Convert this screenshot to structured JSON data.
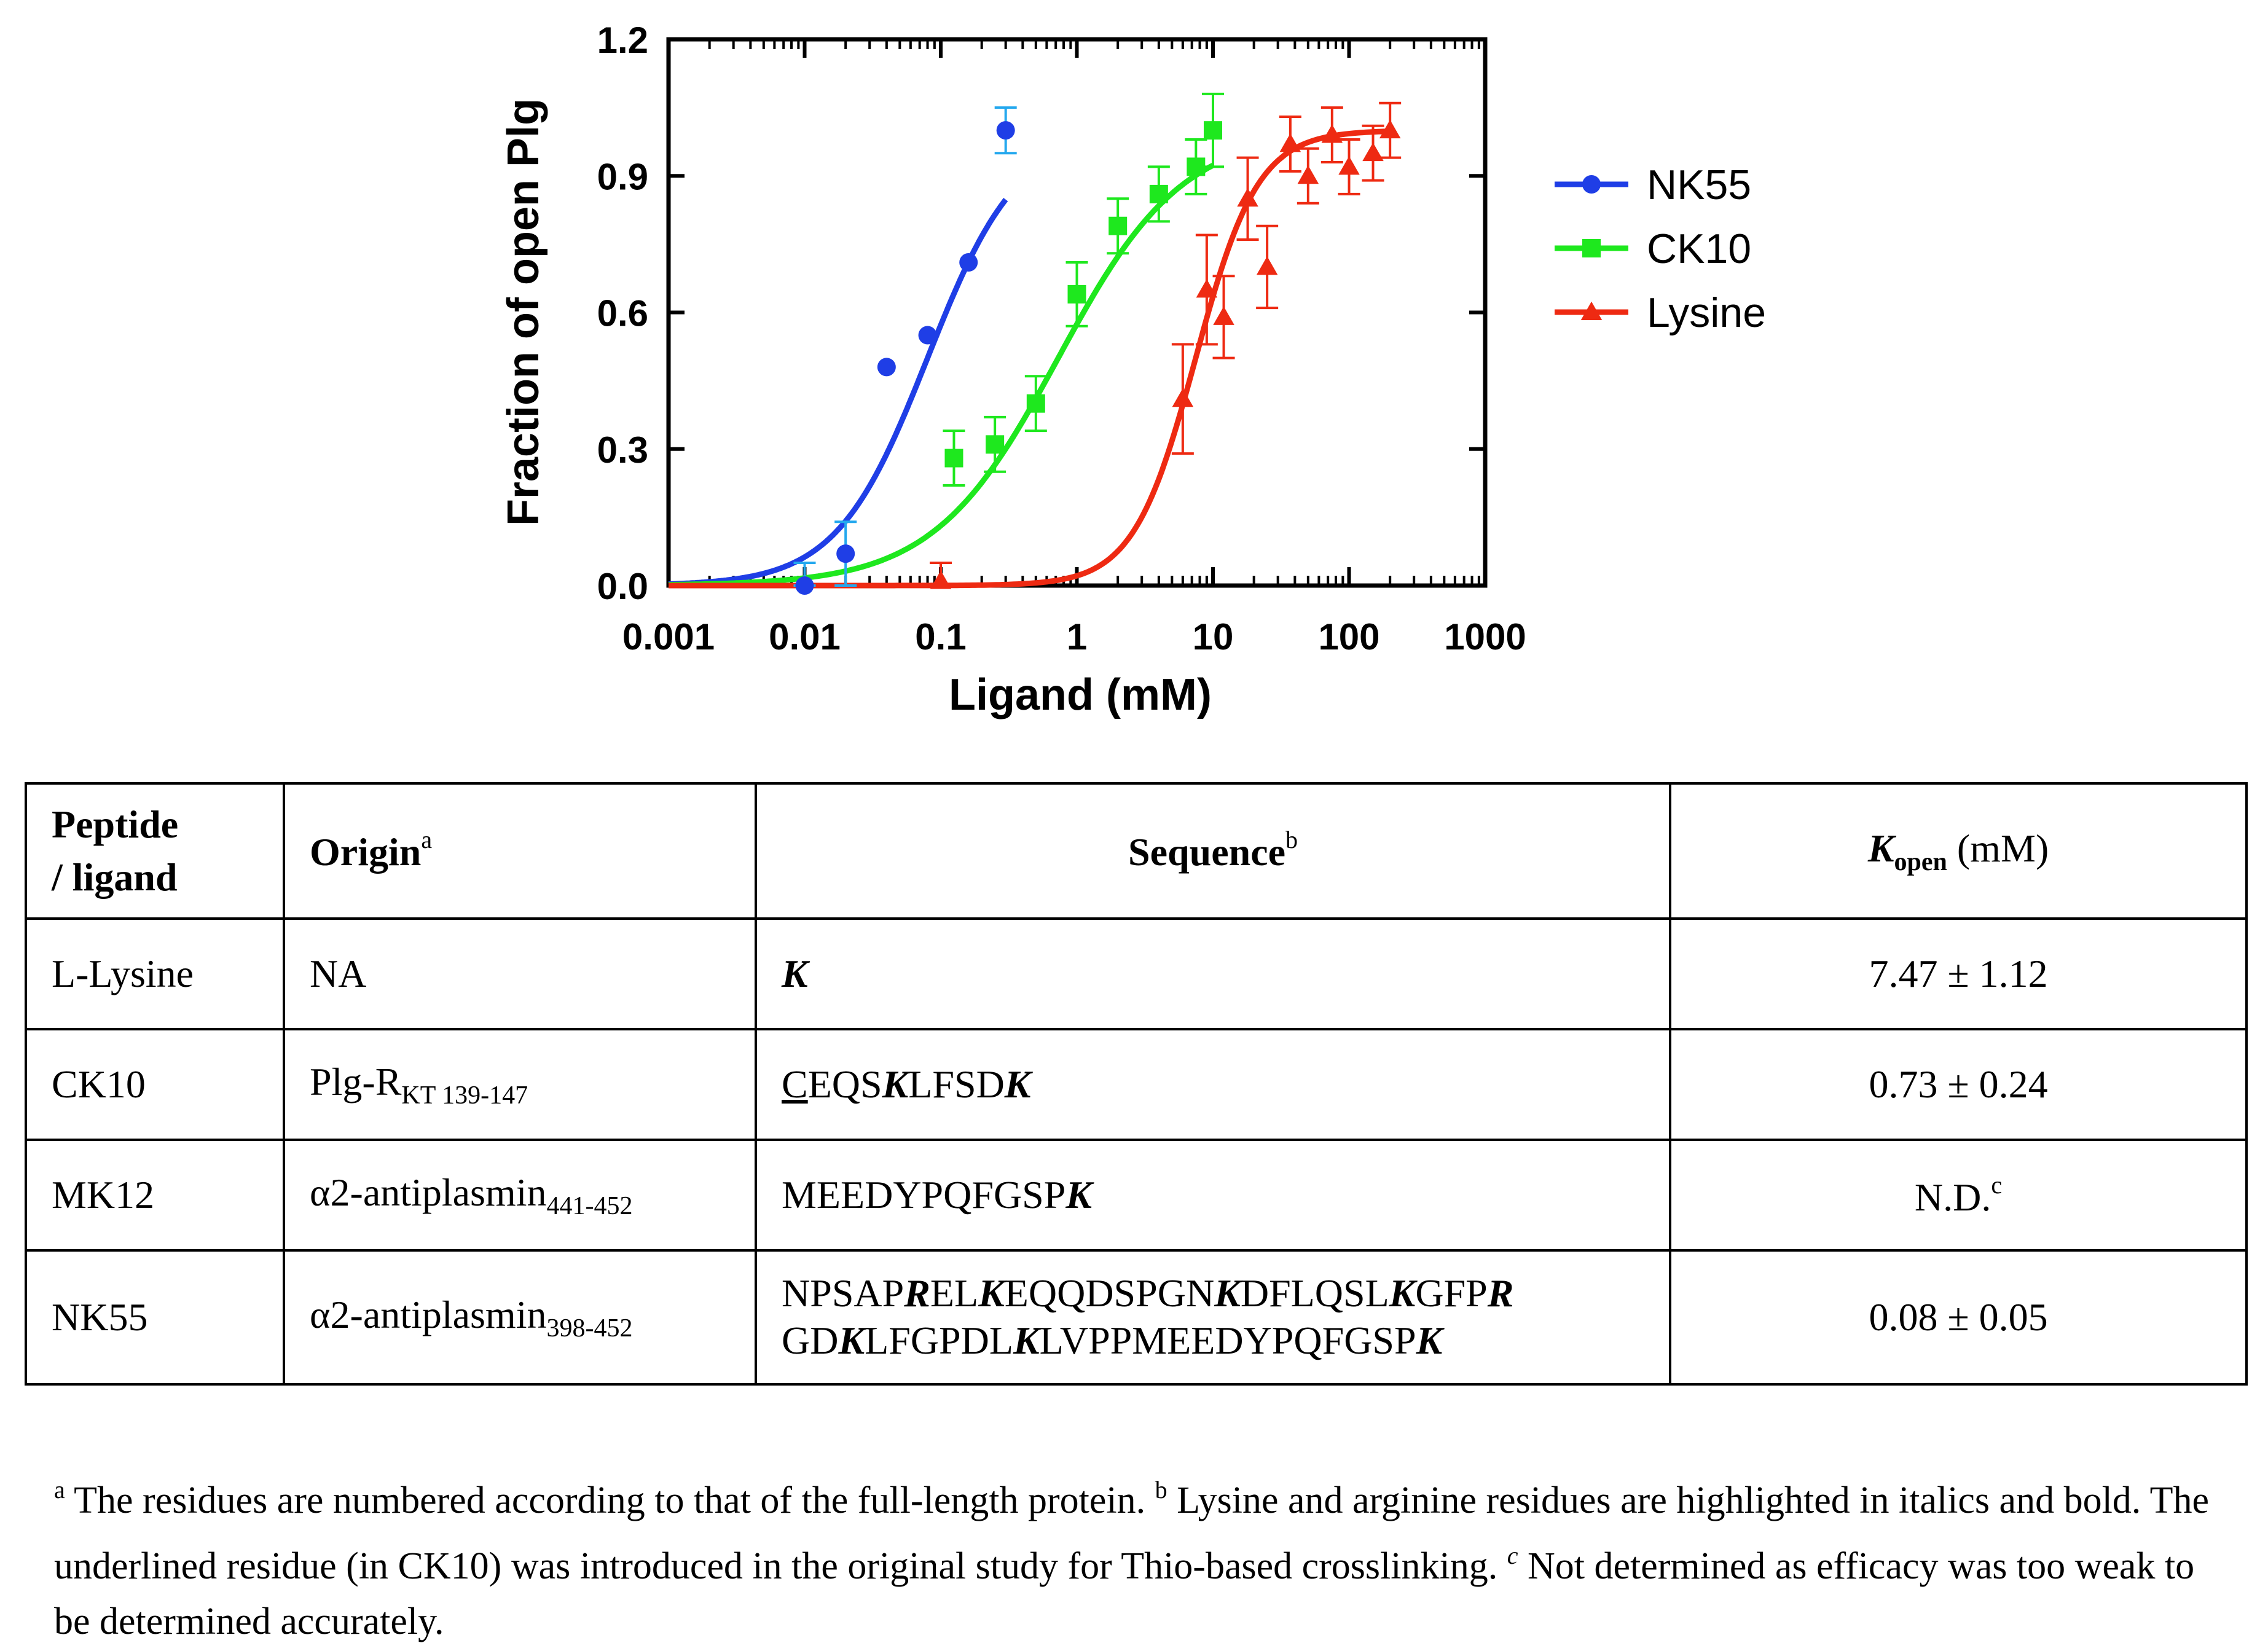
{
  "chart_data": {
    "type": "scatter",
    "xscale": "log",
    "xlabel": "Ligand (mM)",
    "ylabel": "Fraction of open Plg",
    "xlim": [
      0.001,
      1000
    ],
    "ylim": [
      0,
      1.2
    ],
    "xticks": [
      "0.001",
      "0.01",
      "0.1",
      "1",
      "10",
      "100",
      "1000"
    ],
    "yticks": [
      "0.0",
      "0.3",
      "0.6",
      "0.9",
      "1.2"
    ],
    "legend_position": "right",
    "series": [
      {
        "name": "NK55",
        "color": "#1f3ee6",
        "errColor": "#24a8ee",
        "marker": "circle",
        "fit": {
          "k": 0.08,
          "n": 1.3,
          "xmax": 0.3
        },
        "points": [
          {
            "x": 0.01,
            "y": 0.0,
            "err": 0.05
          },
          {
            "x": 0.02,
            "y": 0.07,
            "err": 0.07
          },
          {
            "x": 0.04,
            "y": 0.48,
            "err": 0
          },
          {
            "x": 0.08,
            "y": 0.55,
            "err": 0
          },
          {
            "x": 0.16,
            "y": 0.71,
            "err": 0
          },
          {
            "x": 0.3,
            "y": 1.0,
            "err": 0.05
          }
        ]
      },
      {
        "name": "CK10",
        "color": "#1ee81e",
        "errColor": "#1ee81e",
        "marker": "square",
        "fit": {
          "k": 0.73,
          "n": 0.95,
          "xmax": 10
        },
        "points": [
          {
            "x": 0.125,
            "y": 0.28,
            "err": 0.06
          },
          {
            "x": 0.25,
            "y": 0.31,
            "err": 0.06
          },
          {
            "x": 0.5,
            "y": 0.4,
            "err": 0.06
          },
          {
            "x": 1,
            "y": 0.64,
            "err": 0.07
          },
          {
            "x": 2,
            "y": 0.79,
            "err": 0.06
          },
          {
            "x": 4,
            "y": 0.86,
            "err": 0.06
          },
          {
            "x": 7.5,
            "y": 0.92,
            "err": 0.06
          },
          {
            "x": 10,
            "y": 1.0,
            "err": 0.08
          }
        ]
      },
      {
        "name": "Lysine",
        "color": "#ee2a12",
        "errColor": "#ee2a12",
        "marker": "triangle",
        "fit": {
          "k": 7.47,
          "n": 1.9,
          "xmax": 200
        },
        "points": [
          {
            "x": 0.1,
            "y": 0.01,
            "err": 0.04
          },
          {
            "x": 6,
            "y": 0.41,
            "err": 0.12
          },
          {
            "x": 9,
            "y": 0.65,
            "err": 0.12
          },
          {
            "x": 12,
            "y": 0.59,
            "err": 0.09
          },
          {
            "x": 18,
            "y": 0.85,
            "err": 0.09
          },
          {
            "x": 25,
            "y": 0.7,
            "err": 0.09
          },
          {
            "x": 37,
            "y": 0.97,
            "err": 0.06
          },
          {
            "x": 50,
            "y": 0.9,
            "err": 0.06
          },
          {
            "x": 75,
            "y": 0.99,
            "err": 0.06
          },
          {
            "x": 100,
            "y": 0.92,
            "err": 0.06
          },
          {
            "x": 150,
            "y": 0.95,
            "err": 0.06
          },
          {
            "x": 200,
            "y": 1.0,
            "err": 0.06
          }
        ]
      }
    ]
  },
  "table": {
    "headers": {
      "peptide_line1": "Peptide",
      "peptide_line2": "/ ligand",
      "origin": "Origin",
      "origin_sup": "a",
      "sequence": "Sequence",
      "sequence_sup": "b",
      "kopen_k": "K",
      "kopen_sub": "open",
      "kopen_unit": " (mM)"
    },
    "rows": [
      {
        "peptide": "L-Lysine",
        "origin": "NA",
        "kopen": "7.47 ± 1.12",
        "seq": [
          {
            "t": "K",
            "s": "kb"
          }
        ]
      },
      {
        "peptide": "CK10",
        "origin": "Plg-R",
        "origin_sub": "KT 139-147",
        "kopen": "0.73 ± 0.24",
        "seq": [
          {
            "t": "C",
            "s": "ul"
          },
          {
            "t": "EQS"
          },
          {
            "t": "K",
            "s": "kb"
          },
          {
            "t": "LFSD"
          },
          {
            "t": "K",
            "s": "kb"
          }
        ]
      },
      {
        "peptide": "MK12",
        "origin": "α2-antiplasmin",
        "origin_sub": "441-452",
        "kopen": "N.D.",
        "kopen_sup": "c",
        "seq": [
          {
            "t": "MEEDYPQFGSP"
          },
          {
            "t": "K",
            "s": "kb"
          }
        ]
      },
      {
        "peptide": "NK55",
        "origin": "α2-antiplasmin",
        "origin_sub": "398-452",
        "kopen": "0.08 ± 0.05",
        "seq": [
          {
            "t": "NPSAP"
          },
          {
            "t": "R",
            "s": "kb"
          },
          {
            "t": "EL"
          },
          {
            "t": "K",
            "s": "kb"
          },
          {
            "t": "EQQDSPGN"
          },
          {
            "t": "K",
            "s": "kb"
          },
          {
            "t": "DFLQSL"
          },
          {
            "t": "K",
            "s": "kb"
          },
          {
            "t": "GFP"
          },
          {
            "t": "R",
            "s": "kb"
          },
          {
            "br": true
          },
          {
            "t": "GD"
          },
          {
            "t": "K",
            "s": "kb"
          },
          {
            "t": "LFGPDL"
          },
          {
            "t": "K",
            "s": "kb"
          },
          {
            "t": "LVPPMEEDYPQFGSP"
          },
          {
            "t": "K",
            "s": "kb"
          }
        ]
      }
    ]
  },
  "footnotes": {
    "a_mark": "a",
    "a_text": " The residues are numbered according to that of the full-length protein. ",
    "b_mark": "b",
    "b_text": " Lysine and arginine residues are highlighted in italics and bold. The underlined residue (in CK10) was introduced in the original study for Thio-based crosslinking. ",
    "c_mark": "c",
    "c_text": " Not determined as efficacy was too weak to be determined accurately."
  }
}
